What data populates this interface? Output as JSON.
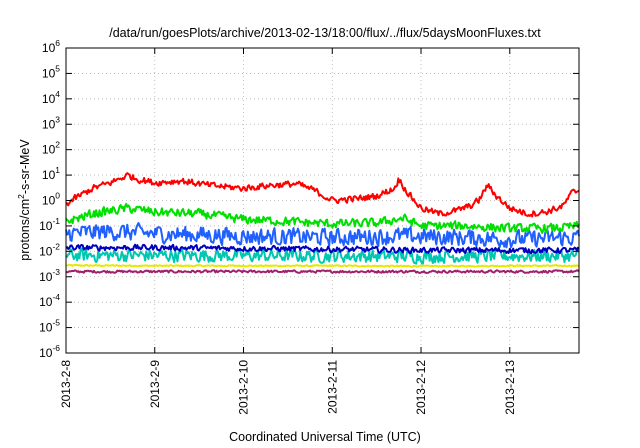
{
  "chart_data": {
    "type": "line",
    "title": "/data/run/goesPlots/archive/2013-02-13/18:00/flux/../flux/5daysMoonFluxes.txt",
    "xlabel": "Coordinated Universal Time (UTC)",
    "ylabel": {
      "base": "protons/cm",
      "exp": "2",
      "rest": "-s-sr-MeV"
    },
    "y_scale": "log",
    "ylim_exp": [
      -6,
      6
    ],
    "y_ticks": [
      {
        "exp": -6,
        "base": "10",
        "sup": "-6"
      },
      {
        "exp": -5,
        "base": "10",
        "sup": "-5"
      },
      {
        "exp": -4,
        "base": "10",
        "sup": "-4"
      },
      {
        "exp": -3,
        "base": "10",
        "sup": "-3"
      },
      {
        "exp": -2,
        "base": "10",
        "sup": "-2"
      },
      {
        "exp": -1,
        "base": "10",
        "sup": "-1"
      },
      {
        "exp": 0,
        "base": "10",
        "sup": "0"
      },
      {
        "exp": 1,
        "base": "10",
        "sup": "1"
      },
      {
        "exp": 2,
        "base": "10",
        "sup": "2"
      },
      {
        "exp": 3,
        "base": "10",
        "sup": "3"
      },
      {
        "exp": 4,
        "base": "10",
        "sup": "4"
      },
      {
        "exp": 5,
        "base": "10",
        "sup": "5"
      },
      {
        "exp": 6,
        "base": "10",
        "sup": "6"
      }
    ],
    "x_range_days": [
      0,
      5.78
    ],
    "x_ticks": [
      {
        "day": 0,
        "label": "2013-2-8"
      },
      {
        "day": 1,
        "label": "2013-2-9"
      },
      {
        "day": 2,
        "label": "2013-2-10"
      },
      {
        "day": 3,
        "label": "2013-2-11"
      },
      {
        "day": 4,
        "label": "2013-2-12"
      },
      {
        "day": 5,
        "label": "2013-2-13"
      }
    ],
    "grid": true,
    "series": [
      {
        "color": "#e8e800",
        "x": [
          0,
          1,
          2,
          3,
          4,
          5,
          5.78
        ],
        "y": [
          0.0028,
          0.0027,
          0.0027,
          0.0027,
          0.0026,
          0.0027,
          0.0027
        ],
        "noise": 0.03
      },
      {
        "color": "#a0206a",
        "x": [
          0,
          1,
          2,
          3,
          4,
          5,
          5.78
        ],
        "y": [
          0.0016,
          0.0016,
          0.0016,
          0.0016,
          0.0016,
          0.0016,
          0.0016
        ],
        "noise": 0.06
      },
      {
        "color": "#00c8b0",
        "x": [
          0,
          1,
          2,
          3,
          4,
          5,
          5.78
        ],
        "y": [
          0.007,
          0.007,
          0.0068,
          0.0066,
          0.0064,
          0.0066,
          0.0066
        ],
        "noise": 0.32
      },
      {
        "color": "#2060ff",
        "x": [
          0,
          0.5,
          1,
          2,
          3,
          3.8,
          4.5,
          5,
          5.78
        ],
        "y": [
          0.05,
          0.06,
          0.05,
          0.04,
          0.035,
          0.04,
          0.035,
          0.03,
          0.035
        ],
        "noise": 0.42
      },
      {
        "color": "#0000c0",
        "x": [
          0,
          1,
          2,
          3,
          4,
          5,
          5.78
        ],
        "y": [
          0.014,
          0.014,
          0.013,
          0.012,
          0.011,
          0.011,
          0.011
        ],
        "noise": 0.14
      },
      {
        "color": "#00e000",
        "x": [
          0,
          0.3,
          0.7,
          1,
          1.5,
          2,
          2.5,
          3,
          3.5,
          3.8,
          4,
          4.5,
          5,
          5.5,
          5.78
        ],
        "y": [
          0.15,
          0.3,
          0.5,
          0.35,
          0.3,
          0.18,
          0.15,
          0.12,
          0.13,
          0.2,
          0.1,
          0.1,
          0.08,
          0.08,
          0.1
        ],
        "noise": 0.22
      },
      {
        "color": "#ff0000",
        "x": [
          0,
          0.1,
          0.3,
          0.5,
          0.7,
          0.8,
          1,
          1.3,
          1.6,
          2,
          2.3,
          2.6,
          2.8,
          3,
          3.3,
          3.5,
          3.7,
          3.75,
          3.85,
          4.0,
          4.2,
          4.4,
          4.55,
          4.65,
          4.75,
          4.85,
          5,
          5.2,
          5.4,
          5.6,
          5.7,
          5.78
        ],
        "y": [
          0.7,
          1.2,
          3,
          5,
          10,
          7,
          5,
          6,
          4,
          3,
          4,
          4.5,
          2.5,
          1,
          1.2,
          1.5,
          3,
          7,
          2,
          0.5,
          0.3,
          0.4,
          0.6,
          1,
          4,
          1.5,
          0.5,
          0.3,
          0.35,
          0.6,
          2,
          2.5
        ],
        "noise": 0.16
      }
    ]
  }
}
